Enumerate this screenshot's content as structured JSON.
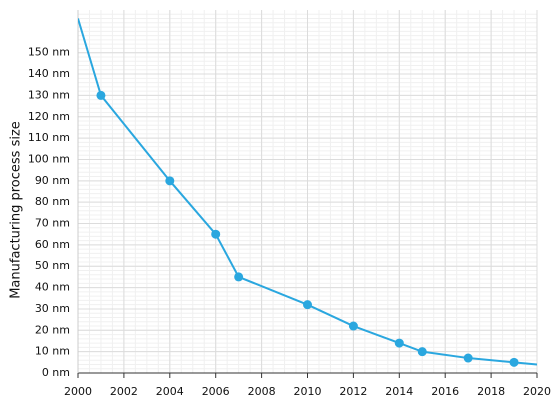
{
  "chart_data": {
    "type": "line",
    "y_label": "Manufacturing process size",
    "x": [
      2000,
      2001,
      2004,
      2006,
      2007,
      2010,
      2012,
      2014,
      2015,
      2017,
      2019,
      2020
    ],
    "series": [
      {
        "color": "#2aa7df",
        "values": [
          166,
          130,
          90,
          65,
          45,
          32,
          22,
          14,
          10,
          7,
          5,
          4
        ]
      }
    ],
    "xlim": [
      2000,
      2020
    ],
    "xticks": [
      2000,
      2002,
      2004,
      2006,
      2008,
      2010,
      2012,
      2014,
      2016,
      2018,
      2020
    ],
    "ylim": [
      0,
      170
    ],
    "yticks": [
      {
        "value": 0,
        "label": "0 nm"
      },
      {
        "value": 10,
        "label": "10 nm"
      },
      {
        "value": 20,
        "label": "20 nm"
      },
      {
        "value": 30,
        "label": "30 nm"
      },
      {
        "value": 40,
        "label": "40 nm"
      },
      {
        "value": 50,
        "label": "50 nm"
      },
      {
        "value": 60,
        "label": "60 nm"
      },
      {
        "value": 70,
        "label": "70 nm"
      },
      {
        "value": 80,
        "label": "80 nm"
      },
      {
        "value": 90,
        "label": "90 nm"
      },
      {
        "value": 100,
        "label": "100 nm"
      },
      {
        "value": 110,
        "label": "110 nm"
      },
      {
        "value": 120,
        "label": "120 nm"
      },
      {
        "value": 130,
        "label": "130 nm"
      },
      {
        "value": 140,
        "label": "140 nm"
      },
      {
        "value": 150,
        "label": "150 nm"
      }
    ],
    "grid": true
  }
}
